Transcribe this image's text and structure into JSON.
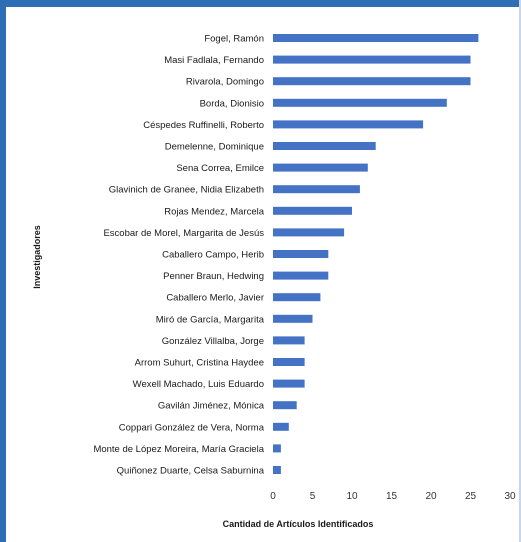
{
  "colors": {
    "bar": "#4472c4",
    "frame": "#2f6db5"
  },
  "chart_data": {
    "type": "bar",
    "orientation": "horizontal",
    "xlabel": "Cantidad de Artículos Identificados",
    "ylabel": "Investigadores",
    "xlim": [
      0,
      30
    ],
    "xticks": [
      "0",
      "5",
      "10",
      "15",
      "20",
      "25",
      "30"
    ],
    "grid": false,
    "categories": [
      "Fogel, Ramón",
      "Masi Fadlala, Fernando",
      "Rivarola, Domingo",
      "Borda, Dionisio",
      "Céspedes Ruffinelli, Roberto",
      "Demelenne, Dominique",
      "Sena Correa, Emilce",
      "Glavinich de Granee, Nidia Elizabeth",
      "Rojas Mendez, Marcela",
      "Escobar de Morel, Margarita de Jesús",
      "Caballero Campo, Herib",
      "Penner Braun, Hedwing",
      "Caballero Merlo, Javier",
      "Miró de García, Margarita",
      "González Villalba, Jorge",
      "Arrom Suhurt, Cristina Haydee",
      "Wexell Machado, Luis Eduardo",
      "Gavilán Jiménez, Mónica",
      "Coppari González de Vera, Norma",
      "Monte de López Moreira, María Graciela",
      "Quiñonez Duarte, Celsa Saburnina"
    ],
    "values": [
      26,
      25,
      25,
      22,
      19,
      13,
      12,
      11,
      10,
      9,
      7,
      7,
      6,
      5,
      4,
      4,
      4,
      3,
      2,
      1,
      1
    ]
  }
}
